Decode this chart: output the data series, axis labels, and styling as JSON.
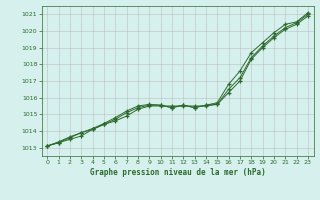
{
  "title": "Graphe pression niveau de la mer (hPa)",
  "bg_color": "#d6f0ee",
  "grid_color": "#b0b0b0",
  "line_color": "#2d6a2d",
  "xlim": [
    -0.5,
    23.5
  ],
  "ylim": [
    1012.5,
    1021.5
  ],
  "yticks": [
    1013,
    1014,
    1015,
    1016,
    1017,
    1018,
    1019,
    1020,
    1021
  ],
  "xticks": [
    0,
    1,
    2,
    3,
    4,
    5,
    6,
    7,
    8,
    9,
    10,
    11,
    12,
    13,
    14,
    15,
    16,
    17,
    18,
    19,
    20,
    21,
    22,
    23
  ],
  "series1": [
    1013.1,
    1013.3,
    1013.5,
    1013.7,
    1014.1,
    1014.4,
    1014.6,
    1014.9,
    1015.3,
    1015.5,
    1015.5,
    1015.5,
    1015.5,
    1015.5,
    1015.5,
    1015.6,
    1016.3,
    1017.0,
    1018.3,
    1019.0,
    1019.6,
    1020.1,
    1020.4,
    1020.9
  ],
  "series2": [
    1013.1,
    1013.3,
    1013.6,
    1013.9,
    1014.1,
    1014.4,
    1014.7,
    1015.1,
    1015.4,
    1015.55,
    1015.55,
    1015.4,
    1015.55,
    1015.4,
    1015.55,
    1015.6,
    1016.5,
    1017.2,
    1018.4,
    1019.1,
    1019.7,
    1020.2,
    1020.5,
    1021.0
  ],
  "series3": [
    1013.1,
    1013.35,
    1013.65,
    1013.9,
    1014.15,
    1014.45,
    1014.8,
    1015.2,
    1015.5,
    1015.6,
    1015.55,
    1015.4,
    1015.55,
    1015.4,
    1015.55,
    1015.7,
    1016.8,
    1017.6,
    1018.7,
    1019.3,
    1019.9,
    1020.4,
    1020.55,
    1021.1
  ]
}
